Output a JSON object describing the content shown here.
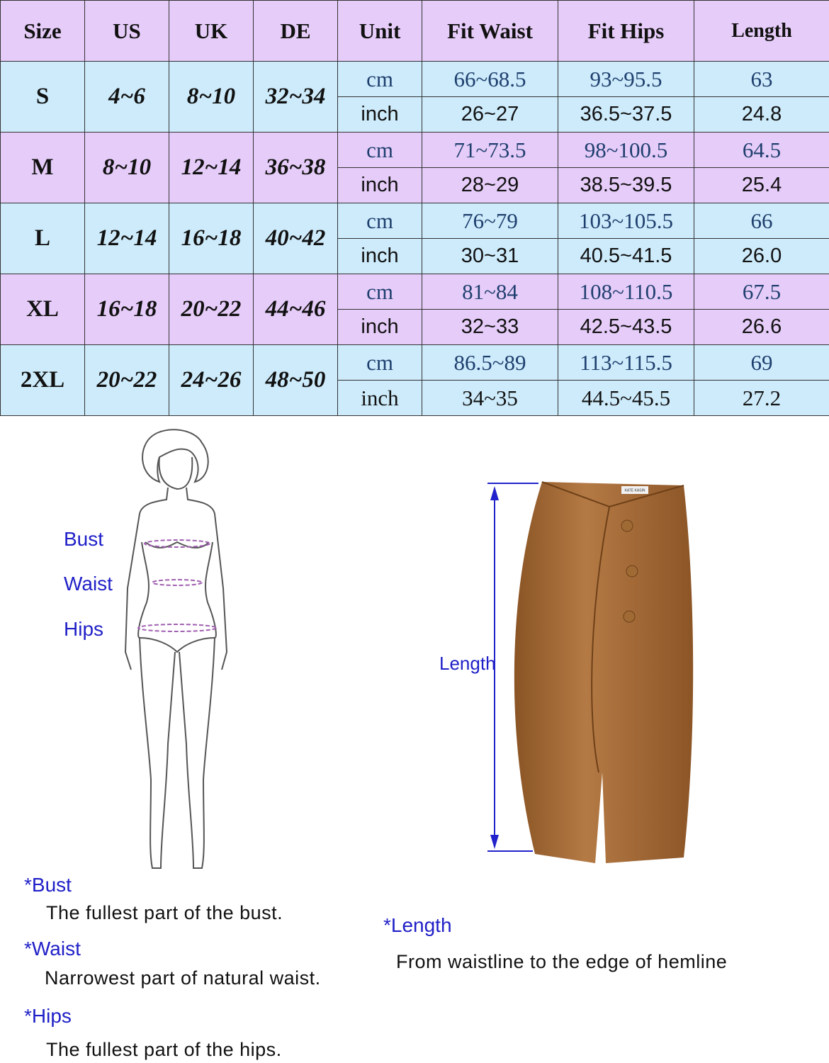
{
  "table": {
    "headers": [
      "Size",
      "US",
      "UK",
      "DE",
      "Unit",
      "Fit Waist",
      "Fit Hips",
      "Length"
    ],
    "rows": [
      {
        "size": "S",
        "us": "4~6",
        "uk": "8~10",
        "de": "32~34",
        "cm": {
          "unit": "cm",
          "waist": "66~68.5",
          "hips": "93~95.5",
          "length": "63"
        },
        "inch": {
          "unit": "inch",
          "waist": "26~27",
          "hips": "36.5~37.5",
          "length": "24.8"
        }
      },
      {
        "size": "M",
        "us": "8~10",
        "uk": "12~14",
        "de": "36~38",
        "cm": {
          "unit": "cm",
          "waist": "71~73.5",
          "hips": "98~100.5",
          "length": "64.5"
        },
        "inch": {
          "unit": "inch",
          "waist": "28~29",
          "hips": "38.5~39.5",
          "length": "25.4"
        }
      },
      {
        "size": "L",
        "us": "12~14",
        "uk": "16~18",
        "de": "40~42",
        "cm": {
          "unit": "cm",
          "waist": "76~79",
          "hips": "103~105.5",
          "length": "66"
        },
        "inch": {
          "unit": "inch",
          "waist": "30~31",
          "hips": "40.5~41.5",
          "length": "26.0"
        }
      },
      {
        "size": "XL",
        "us": "16~18",
        "uk": "20~22",
        "de": "44~46",
        "cm": {
          "unit": "cm",
          "waist": "81~84",
          "hips": "108~110.5",
          "length": "67.5"
        },
        "inch": {
          "unit": "inch",
          "waist": "32~33",
          "hips": "42.5~43.5",
          "length": "26.6"
        }
      },
      {
        "size": "2XL",
        "us": "20~22",
        "uk": "24~26",
        "de": "48~50",
        "cm": {
          "unit": "cm",
          "waist": "86.5~89",
          "hips": "113~115.5",
          "length": "69"
        },
        "inch": {
          "unit": "inch",
          "waist": "34~35",
          "hips": "44.5~45.5",
          "length": "27.2"
        }
      }
    ],
    "colors": {
      "header": "#e6ccf9",
      "row_blue": "#cdebfb",
      "row_purple": "#e6ccf9",
      "cm_text": "#1f3f6e"
    }
  },
  "figure": {
    "bust": "Bust",
    "waist": "Waist",
    "hips": "Hips"
  },
  "skirt": {
    "length": "Length",
    "tag": "KATE KASIN"
  },
  "notes": {
    "bust_title": "*Bust",
    "bust_desc": "The fullest part of the bust.",
    "waist_title": "*Waist",
    "waist_desc": "Narrowest part of natural waist.",
    "hips_title": "*Hips",
    "hips_desc": "The fullest part of the hips.",
    "length_title": "*Length",
    "length_desc": "From waistline to the edge of hemline"
  }
}
